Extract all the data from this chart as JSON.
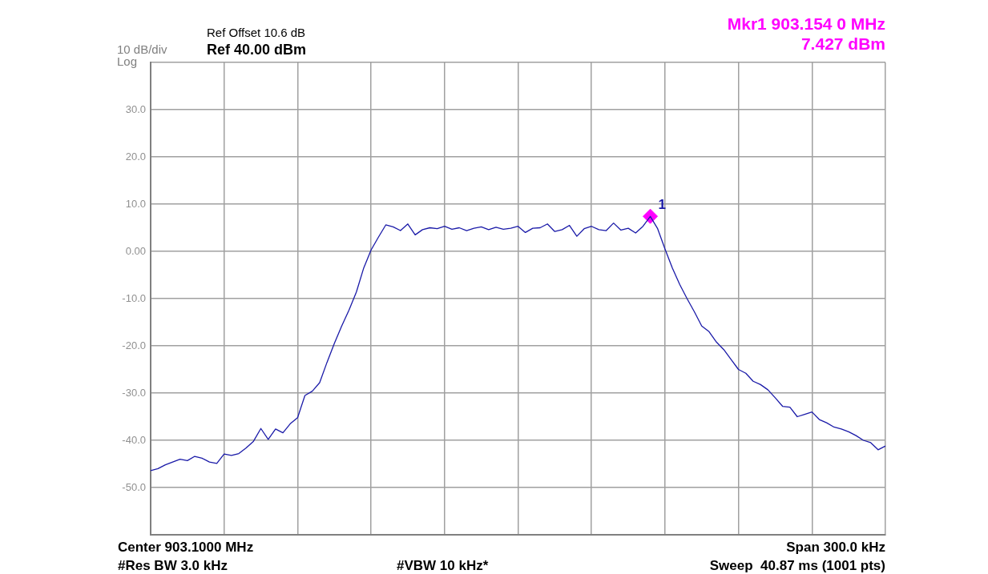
{
  "chart_data": {
    "type": "line",
    "categories": [
      null,
      null,
      null,
      null,
      null,
      null,
      null,
      null,
      null,
      null,
      null,
      null,
      null,
      null,
      null,
      null,
      null,
      null,
      null,
      null,
      null,
      null,
      null,
      null,
      null,
      null,
      null,
      null,
      null,
      null,
      null,
      null,
      null,
      null,
      null,
      null,
      null,
      null,
      null,
      null,
      null,
      null,
      null,
      null,
      null,
      null,
      null,
      null,
      null,
      null,
      null,
      null,
      null,
      null,
      null,
      null,
      null,
      null,
      null,
      null,
      null,
      null,
      null,
      null,
      null,
      null,
      null,
      null,
      null,
      null,
      null,
      null,
      null,
      null,
      null,
      null,
      null,
      null,
      null,
      null,
      null,
      null,
      null,
      null,
      null,
      null,
      null,
      null,
      null,
      null,
      null,
      null,
      null,
      null,
      null,
      null,
      null,
      null,
      null,
      null,
      null
    ],
    "series": [
      {
        "color": "#1a1aa8",
        "marker": "none",
        "values": [
          -46.4,
          -46.0,
          -45.2,
          -44.6,
          -44.0,
          -44.3,
          -43.4,
          -43.8,
          -44.6,
          -44.9,
          -42.9,
          -43.2,
          -42.8,
          -41.6,
          -40.2,
          -37.5,
          -39.8,
          -37.6,
          -38.4,
          -36.5,
          -35.2,
          -30.5,
          -29.6,
          -27.8,
          -23.5,
          -19.5,
          -15.8,
          -12.4,
          -8.6,
          -3.5,
          0.3,
          3.0,
          5.6,
          5.2,
          4.4,
          5.8,
          3.5,
          4.6,
          5.0,
          4.8,
          5.3,
          4.7,
          5.0,
          4.4,
          4.9,
          5.2,
          4.6,
          5.1,
          4.7,
          4.9,
          5.3,
          4.0,
          4.9,
          5.0,
          5.8,
          4.2,
          4.6,
          5.5,
          3.2,
          4.8,
          5.3,
          4.6,
          4.4,
          6.0,
          4.5,
          4.9,
          3.9,
          5.3,
          7.4,
          4.8,
          0.5,
          -3.5,
          -7.0,
          -10.0,
          -12.8,
          -15.8,
          -17.0,
          -19.2,
          -20.8,
          -22.9,
          -25.0,
          -25.8,
          -27.5,
          -28.2,
          -29.3,
          -31.0,
          -32.8,
          -33.0,
          -35.0,
          -34.5,
          -34.0,
          -35.6,
          -36.3,
          -37.2,
          -37.6,
          -38.2,
          -39.0,
          -40.0,
          -40.5,
          -42.0,
          -41.2
        ]
      },
      {
        "name": "1",
        "type": "scatter",
        "color": "#ff00ff",
        "marker": "diamond",
        "values": [
          null,
          null,
          null,
          null,
          null,
          null,
          null,
          null,
          null,
          null,
          null,
          null,
          null,
          null,
          null,
          null,
          null,
          null,
          null,
          null,
          null,
          null,
          null,
          null,
          null,
          null,
          null,
          null,
          null,
          null,
          null,
          null,
          null,
          null,
          null,
          null,
          null,
          null,
          null,
          null,
          null,
          null,
          null,
          null,
          null,
          null,
          null,
          null,
          null,
          null,
          null,
          null,
          null,
          null,
          null,
          null,
          null,
          null,
          null,
          null,
          null,
          null,
          null,
          null,
          null,
          null,
          null,
          null,
          7.427,
          null,
          null,
          null,
          null,
          null,
          null,
          null,
          null,
          null,
          null,
          null,
          null,
          null,
          null,
          null,
          null,
          null,
          null,
          null,
          null,
          null,
          null,
          null,
          null,
          null,
          null,
          null,
          null,
          null,
          null,
          null,
          null
        ]
      }
    ],
    "ylim": [
      -60,
      40
    ],
    "yticks": [
      {
        "value": -60,
        "label": null
      },
      {
        "value": -50,
        "label": "-50.0"
      },
      {
        "value": -40,
        "label": "-40.0"
      },
      {
        "value": -30,
        "label": "-30.0"
      },
      {
        "value": -20,
        "label": "-20.0"
      },
      {
        "value": -10,
        "label": "-10.0"
      },
      {
        "value": 0,
        "label": "0.00"
      },
      {
        "value": 10,
        "label": "10.0"
      },
      {
        "value": 20,
        "label": "20.0"
      },
      {
        "value": 30,
        "label": "30.0"
      },
      {
        "value": 40,
        "label": null
      }
    ],
    "grid": true,
    "tick_labels": "y",
    "annotations": [
      "Ref Offset 10.6 dB",
      "Ref 40.00 dBm",
      "10 dB/div",
      "Log",
      "Mkr1 903.154 0 MHz",
      "7.427 dBm",
      "Center 903.1000 MHz",
      "Span 300.0 kHz",
      "#Res BW 3.0 kHz",
      "#VBW 10 kHz*",
      "Sweep  40.87 ms (1001 pts)"
    ]
  }
}
